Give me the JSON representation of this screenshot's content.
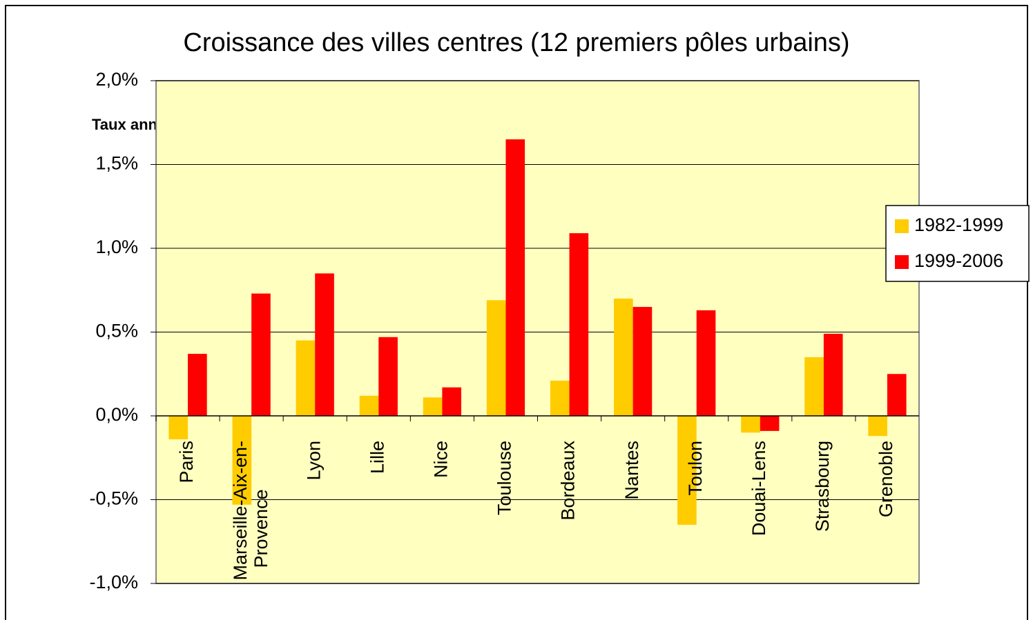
{
  "chart_data": {
    "type": "bar",
    "title": "Croissance des villes centres (12 premiers pôles urbains)",
    "annotation": "Taux annuel",
    "categories": [
      "Paris",
      "Marseille-Aix-en-Provence",
      "Lyon",
      "Lille",
      "Nice",
      "Toulouse",
      "Bordeaux",
      "Nantes",
      "Toulon",
      "Douai-Lens",
      "Strasbourg",
      "Grenoble"
    ],
    "series": [
      {
        "name": "1982-1999",
        "color": "#ffcc00",
        "values": [
          -0.14,
          -0.53,
          0.45,
          0.12,
          0.11,
          0.69,
          0.21,
          0.7,
          -0.65,
          -0.1,
          0.35,
          -0.12
        ]
      },
      {
        "name": "1999-2006",
        "color": "#ff0000",
        "values": [
          0.37,
          0.73,
          0.85,
          0.47,
          0.17,
          1.65,
          1.09,
          0.65,
          0.63,
          -0.09,
          0.49,
          0.25
        ]
      }
    ],
    "ylim": [
      -1.0,
      2.0
    ],
    "yticks": [
      {
        "value": -1.0,
        "label": "-1,0%"
      },
      {
        "value": -0.5,
        "label": "-0,5%"
      },
      {
        "value": 0,
        "label": "0,0%"
      },
      {
        "value": 0.5,
        "label": "0,5%"
      },
      {
        "value": 1.0,
        "label": "1,0%"
      },
      {
        "value": 1.5,
        "label": "1,5%"
      },
      {
        "value": 2.0,
        "label": "2,0%"
      }
    ],
    "grid": true,
    "legend": "right",
    "plot_background": "#ffffc0"
  }
}
